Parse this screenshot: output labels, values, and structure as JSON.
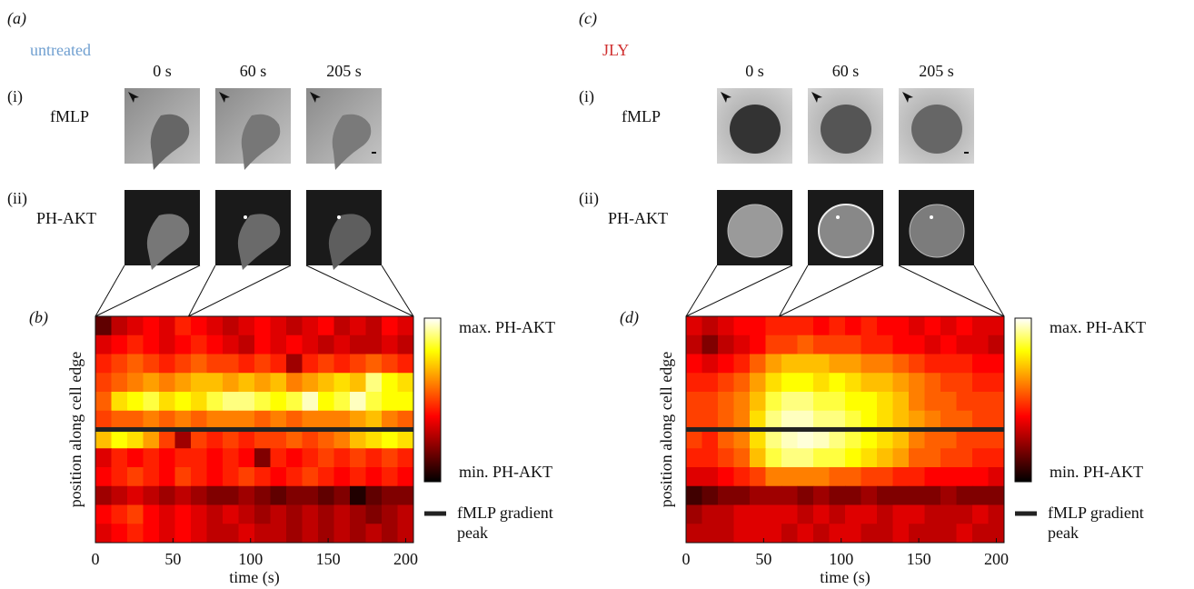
{
  "panels": [
    {
      "label": "(a)",
      "condition": "untreated",
      "times": [
        "0 s",
        "60 s",
        "205 s"
      ],
      "rows": [
        {
          "index": "(i)",
          "name": "fMLP"
        },
        {
          "index": "(ii)",
          "name": "PH-AKT"
        }
      ]
    },
    {
      "label": "(c)",
      "condition": "JLY",
      "times": [
        "0 s",
        "60 s",
        "205 s"
      ],
      "rows": [
        {
          "index": "(i)",
          "name": "fMLP"
        },
        {
          "index": "(ii)",
          "name": "PH-AKT"
        }
      ]
    }
  ],
  "chart_data": [
    {
      "type": "heatmap",
      "label": "(b)",
      "x_label": "time (s)",
      "y_label": "position along cell edge",
      "xlim": [
        0,
        205
      ],
      "xticks": [
        0,
        50,
        100,
        150,
        200
      ],
      "colormap": "hot",
      "colorbar_max": "max. PH-AKT",
      "colorbar_min": "min. PH-AKT",
      "legend": "fMLP gradient peak",
      "values": [
        [
          0.15,
          0.3,
          0.35,
          0.4,
          0.35,
          0.45,
          0.4,
          0.35,
          0.3,
          0.35,
          0.4,
          0.35,
          0.3,
          0.35,
          0.4,
          0.3,
          0.35,
          0.3,
          0.4,
          0.35
        ],
        [
          0.35,
          0.4,
          0.45,
          0.4,
          0.35,
          0.4,
          0.45,
          0.4,
          0.35,
          0.3,
          0.4,
          0.35,
          0.4,
          0.35,
          0.3,
          0.35,
          0.3,
          0.3,
          0.35,
          0.3
        ],
        [
          0.45,
          0.5,
          0.55,
          0.5,
          0.45,
          0.5,
          0.55,
          0.5,
          0.5,
          0.45,
          0.5,
          0.45,
          0.25,
          0.45,
          0.5,
          0.45,
          0.5,
          0.55,
          0.5,
          0.45
        ],
        [
          0.5,
          0.55,
          0.6,
          0.65,
          0.6,
          0.65,
          0.7,
          0.7,
          0.65,
          0.7,
          0.65,
          0.7,
          0.6,
          0.65,
          0.7,
          0.75,
          0.7,
          0.9,
          0.8,
          0.75
        ],
        [
          0.55,
          0.75,
          0.8,
          0.85,
          0.75,
          0.8,
          0.75,
          0.85,
          0.9,
          0.9,
          0.85,
          0.8,
          0.85,
          0.95,
          0.8,
          0.85,
          0.95,
          0.85,
          0.8,
          0.8
        ],
        [
          0.5,
          0.55,
          0.55,
          0.6,
          0.55,
          0.6,
          0.55,
          0.6,
          0.6,
          0.6,
          0.55,
          0.6,
          0.55,
          0.6,
          0.6,
          0.6,
          0.65,
          0.7,
          0.6,
          0.55
        ],
        [
          0.7,
          0.8,
          0.75,
          0.65,
          0.5,
          0.25,
          0.5,
          0.45,
          0.5,
          0.45,
          0.5,
          0.5,
          0.55,
          0.5,
          0.55,
          0.6,
          0.7,
          0.75,
          0.8,
          0.75
        ],
        [
          0.35,
          0.45,
          0.4,
          0.45,
          0.4,
          0.45,
          0.45,
          0.4,
          0.45,
          0.4,
          0.2,
          0.45,
          0.4,
          0.45,
          0.5,
          0.45,
          0.5,
          0.45,
          0.5,
          0.45
        ],
        [
          0.4,
          0.45,
          0.5,
          0.45,
          0.4,
          0.5,
          0.45,
          0.4,
          0.45,
          0.5,
          0.45,
          0.4,
          0.45,
          0.5,
          0.45,
          0.4,
          0.45,
          0.4,
          0.45,
          0.4
        ],
        [
          0.25,
          0.3,
          0.35,
          0.3,
          0.25,
          0.3,
          0.25,
          0.2,
          0.2,
          0.25,
          0.2,
          0.15,
          0.2,
          0.2,
          0.15,
          0.2,
          0.05,
          0.15,
          0.2,
          0.2
        ],
        [
          0.4,
          0.45,
          0.5,
          0.4,
          0.35,
          0.4,
          0.35,
          0.3,
          0.35,
          0.3,
          0.25,
          0.3,
          0.25,
          0.3,
          0.25,
          0.3,
          0.25,
          0.2,
          0.25,
          0.3
        ],
        [
          0.35,
          0.4,
          0.45,
          0.4,
          0.35,
          0.4,
          0.35,
          0.3,
          0.3,
          0.35,
          0.3,
          0.3,
          0.25,
          0.3,
          0.25,
          0.3,
          0.25,
          0.3,
          0.25,
          0.3
        ]
      ]
    },
    {
      "type": "heatmap",
      "label": "(d)",
      "x_label": "time (s)",
      "y_label": "position along cell edge",
      "xlim": [
        0,
        205
      ],
      "xticks": [
        0,
        50,
        100,
        150,
        200
      ],
      "colormap": "hot",
      "colorbar_max": "max. PH-AKT",
      "colorbar_min": "min. PH-AKT",
      "legend": "fMLP gradient peak",
      "values": [
        [
          0.35,
          0.3,
          0.35,
          0.4,
          0.4,
          0.45,
          0.45,
          0.45,
          0.4,
          0.45,
          0.4,
          0.45,
          0.4,
          0.4,
          0.35,
          0.4,
          0.35,
          0.4,
          0.35,
          0.35
        ],
        [
          0.3,
          0.2,
          0.3,
          0.35,
          0.4,
          0.5,
          0.5,
          0.55,
          0.5,
          0.5,
          0.5,
          0.45,
          0.45,
          0.4,
          0.4,
          0.35,
          0.4,
          0.35,
          0.35,
          0.3
        ],
        [
          0.4,
          0.35,
          0.4,
          0.45,
          0.55,
          0.65,
          0.7,
          0.7,
          0.7,
          0.65,
          0.65,
          0.6,
          0.6,
          0.55,
          0.5,
          0.45,
          0.45,
          0.45,
          0.4,
          0.4
        ],
        [
          0.45,
          0.45,
          0.5,
          0.55,
          0.65,
          0.75,
          0.8,
          0.8,
          0.75,
          0.8,
          0.75,
          0.7,
          0.7,
          0.65,
          0.6,
          0.55,
          0.5,
          0.5,
          0.45,
          0.45
        ],
        [
          0.5,
          0.5,
          0.55,
          0.6,
          0.7,
          0.85,
          0.9,
          0.9,
          0.85,
          0.85,
          0.8,
          0.8,
          0.75,
          0.7,
          0.6,
          0.55,
          0.55,
          0.5,
          0.5,
          0.5
        ],
        [
          0.5,
          0.5,
          0.55,
          0.6,
          0.75,
          0.9,
          0.95,
          0.95,
          0.9,
          0.9,
          0.85,
          0.8,
          0.75,
          0.7,
          0.65,
          0.6,
          0.55,
          0.55,
          0.5,
          0.5
        ],
        [
          0.5,
          0.45,
          0.55,
          0.6,
          0.75,
          0.9,
          0.95,
          0.97,
          0.95,
          0.9,
          0.85,
          0.8,
          0.75,
          0.7,
          0.6,
          0.55,
          0.55,
          0.5,
          0.5,
          0.5
        ],
        [
          0.45,
          0.45,
          0.5,
          0.55,
          0.7,
          0.85,
          0.9,
          0.9,
          0.85,
          0.85,
          0.8,
          0.75,
          0.7,
          0.65,
          0.55,
          0.55,
          0.5,
          0.5,
          0.45,
          0.45
        ],
        [
          0.35,
          0.35,
          0.4,
          0.45,
          0.5,
          0.6,
          0.6,
          0.6,
          0.6,
          0.55,
          0.55,
          0.5,
          0.5,
          0.45,
          0.45,
          0.4,
          0.4,
          0.4,
          0.4,
          0.35
        ],
        [
          0.1,
          0.15,
          0.2,
          0.2,
          0.25,
          0.25,
          0.25,
          0.2,
          0.25,
          0.2,
          0.2,
          0.25,
          0.2,
          0.2,
          0.2,
          0.2,
          0.25,
          0.2,
          0.2,
          0.2
        ],
        [
          0.25,
          0.3,
          0.3,
          0.35,
          0.35,
          0.35,
          0.35,
          0.3,
          0.35,
          0.3,
          0.35,
          0.35,
          0.3,
          0.35,
          0.35,
          0.3,
          0.3,
          0.3,
          0.35,
          0.3
        ],
        [
          0.3,
          0.3,
          0.3,
          0.35,
          0.35,
          0.35,
          0.3,
          0.35,
          0.3,
          0.35,
          0.35,
          0.3,
          0.3,
          0.35,
          0.3,
          0.3,
          0.3,
          0.35,
          0.3,
          0.3
        ]
      ]
    }
  ]
}
